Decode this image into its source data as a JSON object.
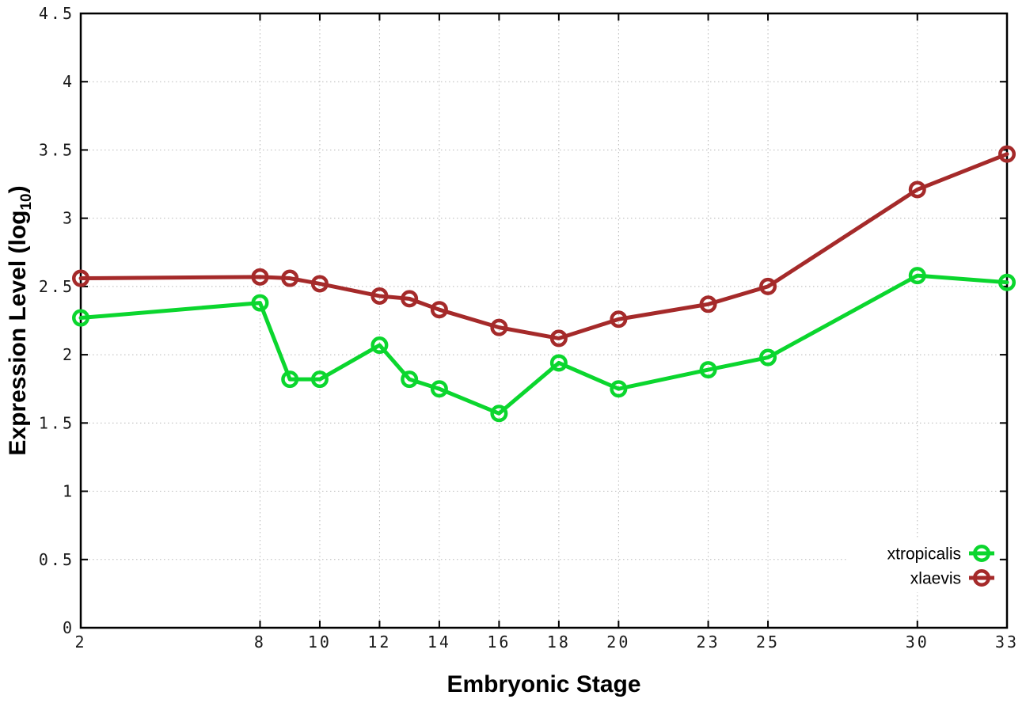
{
  "chart_data": {
    "type": "line",
    "title": "",
    "xlabel": "Embryonic Stage",
    "ylabel": "Expression Level (log10)",
    "ylabel_parts": [
      "Expression Level (log",
      "10",
      ")"
    ],
    "x": [
      2,
      8,
      9,
      10,
      12,
      13,
      14,
      16,
      18,
      20,
      23,
      25,
      30,
      33
    ],
    "series": [
      {
        "name": "xtropicalis",
        "color": "#0BD62E",
        "values": [
          2.27,
          2.38,
          1.82,
          1.82,
          2.07,
          1.82,
          1.75,
          1.57,
          1.94,
          1.75,
          1.89,
          1.98,
          2.58,
          2.53
        ]
      },
      {
        "name": "xlaevis",
        "color": "#A52A2A",
        "values": [
          2.56,
          2.57,
          2.56,
          2.52,
          2.43,
          2.41,
          2.33,
          2.2,
          2.12,
          2.26,
          2.37,
          2.5,
          3.21,
          3.47
        ]
      }
    ],
    "xlim": [
      2,
      33
    ],
    "ylim": [
      0,
      4.5
    ],
    "x_ticks": [
      2,
      8,
      10,
      12,
      14,
      16,
      18,
      20,
      23,
      25,
      30,
      33
    ],
    "y_ticks": [
      0,
      0.5,
      1,
      1.5,
      2,
      2.5,
      3,
      3.5,
      4,
      4.5
    ],
    "grid": true,
    "legend_position": "bottom-right",
    "marker": "open-circle",
    "colors": {
      "grid": "#b8b8b8",
      "axis": "#000000",
      "text": "#1a1a1a",
      "background": "#ffffff"
    }
  }
}
